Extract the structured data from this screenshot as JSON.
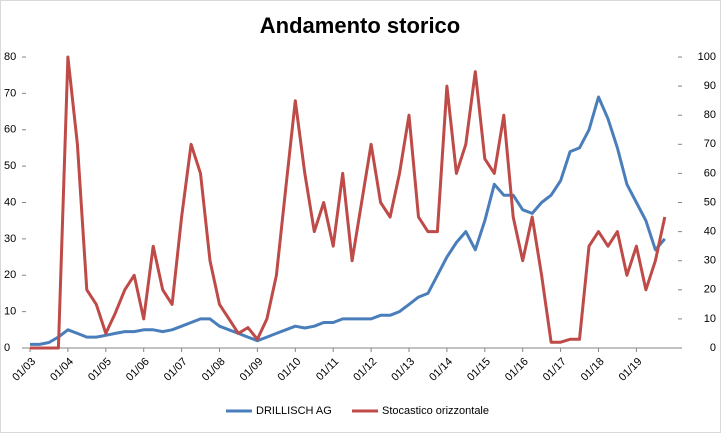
{
  "chart_data": {
    "type": "line",
    "title": "Andamento storico",
    "x": [
      "01/03",
      "04/03",
      "07/03",
      "10/03",
      "01/04",
      "04/04",
      "07/04",
      "10/04",
      "01/05",
      "04/05",
      "07/05",
      "10/05",
      "01/06",
      "04/06",
      "07/06",
      "10/06",
      "01/07",
      "04/07",
      "07/07",
      "10/07",
      "01/08",
      "04/08",
      "07/08",
      "10/08",
      "01/09",
      "04/09",
      "07/09",
      "10/09",
      "01/10",
      "04/10",
      "07/10",
      "10/10",
      "01/11",
      "04/11",
      "07/11",
      "10/11",
      "01/12",
      "04/12",
      "07/12",
      "10/12",
      "01/13",
      "04/13",
      "07/13",
      "10/13",
      "01/14",
      "04/14",
      "07/14",
      "10/14",
      "01/15",
      "04/15",
      "07/15",
      "10/15",
      "01/16",
      "04/16",
      "07/16",
      "10/16",
      "01/17",
      "04/17",
      "07/17",
      "10/17",
      "01/18",
      "04/18",
      "07/18",
      "10/18",
      "01/19",
      "04/19",
      "07/19",
      "10/19"
    ],
    "xticks": [
      "01/03",
      "01/04",
      "01/05",
      "01/06",
      "01/07",
      "01/08",
      "01/09",
      "01/10",
      "01/11",
      "01/12",
      "01/13",
      "01/14",
      "01/15",
      "01/16",
      "01/17",
      "01/18",
      "01/19"
    ],
    "ylim": [
      0,
      80
    ],
    "yticks": [
      0,
      10,
      20,
      30,
      40,
      50,
      60,
      70,
      80
    ],
    "y2lim": [
      0,
      100
    ],
    "y2ticks": [
      0,
      10,
      20,
      30,
      40,
      50,
      60,
      70,
      80,
      90,
      100
    ],
    "legend": "bottom",
    "series": [
      {
        "name": "DRILLISCH AG",
        "color": "#4a7ebb",
        "values": [
          1,
          1,
          1.5,
          3,
          5,
          4,
          3,
          3,
          3.5,
          4,
          4.5,
          4.5,
          5,
          5,
          4.5,
          5,
          6,
          7,
          8,
          8,
          6,
          5,
          4,
          3,
          2,
          3,
          4,
          5,
          6,
          5.5,
          6,
          7,
          7,
          8,
          8,
          8,
          8,
          9,
          9,
          10,
          12,
          14,
          15,
          20,
          25,
          29,
          32,
          27,
          35,
          45,
          42,
          42,
          38,
          37,
          40,
          42,
          46,
          54,
          55,
          60,
          69,
          63,
          55,
          45,
          40,
          35,
          27,
          30
        ]
      },
      {
        "name": "Stocastico orizzontale",
        "color": "#be4b48",
        "axis": "y2",
        "values": [
          0,
          0,
          0,
          0,
          100,
          70,
          20,
          15,
          5,
          12,
          20,
          25,
          10,
          35,
          20,
          15,
          45,
          70,
          60,
          30,
          15,
          10,
          5,
          7,
          3,
          10,
          25,
          55,
          85,
          60,
          40,
          50,
          35,
          60,
          30,
          50,
          70,
          50,
          45,
          60,
          80,
          45,
          40,
          40,
          90,
          60,
          70,
          95,
          65,
          60,
          80,
          45,
          30,
          45,
          25,
          2,
          2,
          3,
          3,
          35,
          40,
          35,
          40,
          25,
          35,
          20,
          30,
          45
        ]
      }
    ]
  }
}
